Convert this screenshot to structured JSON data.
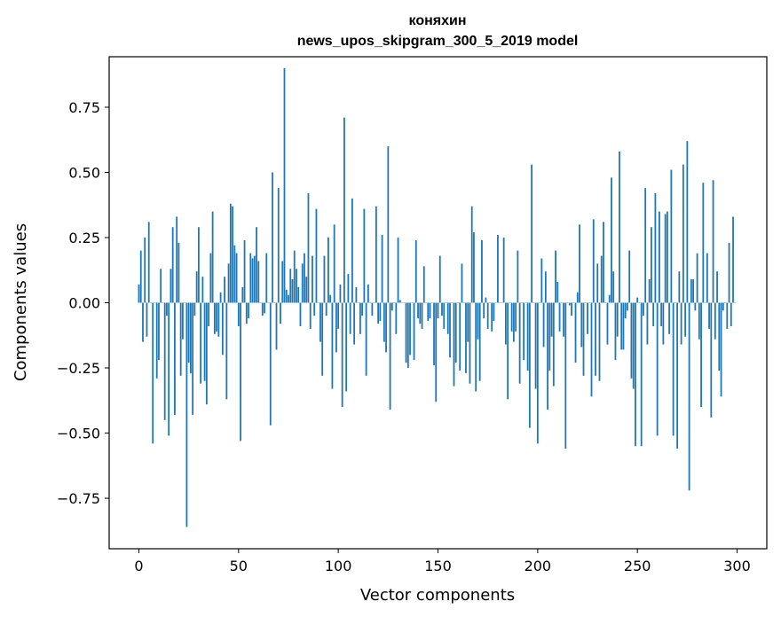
{
  "chart_data": {
    "type": "bar",
    "title": "коняхин",
    "subtitle": "news_upos_skipgram_300_5_2019 model",
    "xlabel": "Vector components",
    "ylabel": "Components values",
    "xlim": [
      -14.9,
      314.9
    ],
    "ylim": [
      -0.9436,
      0.9436
    ],
    "xticks": [
      0,
      50,
      100,
      150,
      200,
      250,
      300
    ],
    "xtick_labels": [
      "0",
      "50",
      "100",
      "150",
      "200",
      "250",
      "300"
    ],
    "yticks": [
      -0.75,
      -0.5,
      -0.25,
      0.0,
      0.25,
      0.5,
      0.75
    ],
    "ytick_labels": [
      "−0.75",
      "−0.50",
      "−0.25",
      "0.00",
      "0.25",
      "0.50",
      "0.75"
    ],
    "grid": false,
    "bar_color": "#1f77b4",
    "x": [
      0,
      1,
      2,
      3,
      4,
      5,
      6,
      7,
      8,
      9,
      10,
      11,
      12,
      13,
      14,
      15,
      16,
      17,
      18,
      19,
      20,
      21,
      22,
      23,
      24,
      25,
      26,
      27,
      28,
      29,
      30,
      31,
      32,
      33,
      34,
      35,
      36,
      37,
      38,
      39,
      40,
      41,
      42,
      43,
      44,
      45,
      46,
      47,
      48,
      49,
      50,
      51,
      52,
      53,
      54,
      55,
      56,
      57,
      58,
      59,
      60,
      61,
      62,
      63,
      64,
      65,
      66,
      67,
      68,
      69,
      70,
      71,
      72,
      73,
      74,
      75,
      76,
      77,
      78,
      79,
      80,
      81,
      82,
      83,
      84,
      85,
      86,
      87,
      88,
      89,
      90,
      91,
      92,
      93,
      94,
      95,
      96,
      97,
      98,
      99,
      100,
      101,
      102,
      103,
      104,
      105,
      106,
      107,
      108,
      109,
      110,
      111,
      112,
      113,
      114,
      115,
      116,
      117,
      118,
      119,
      120,
      121,
      122,
      123,
      124,
      125,
      126,
      127,
      128,
      129,
      130,
      131,
      132,
      133,
      134,
      135,
      136,
      137,
      138,
      139,
      140,
      141,
      142,
      143,
      144,
      145,
      146,
      147,
      148,
      149,
      150,
      151,
      152,
      153,
      154,
      155,
      156,
      157,
      158,
      159,
      160,
      161,
      162,
      163,
      164,
      165,
      166,
      167,
      168,
      169,
      170,
      171,
      172,
      173,
      174,
      175,
      176,
      177,
      178,
      179,
      180,
      181,
      182,
      183,
      184,
      185,
      186,
      187,
      188,
      189,
      190,
      191,
      192,
      193,
      194,
      195,
      196,
      197,
      198,
      199,
      200,
      201,
      202,
      203,
      204,
      205,
      206,
      207,
      208,
      209,
      210,
      211,
      212,
      213,
      214,
      215,
      216,
      217,
      218,
      219,
      220,
      221,
      222,
      223,
      224,
      225,
      226,
      227,
      228,
      229,
      230,
      231,
      232,
      233,
      234,
      235,
      236,
      237,
      238,
      239,
      240,
      241,
      242,
      243,
      244,
      245,
      246,
      247,
      248,
      249,
      250,
      251,
      252,
      253,
      254,
      255,
      256,
      257,
      258,
      259,
      260,
      261,
      262,
      263,
      264,
      265,
      266,
      267,
      268,
      269,
      270,
      271,
      272,
      273,
      274,
      275,
      276,
      277,
      278,
      279,
      280,
      281,
      282,
      283,
      284,
      285,
      286,
      287,
      288,
      289,
      290,
      291,
      292,
      293,
      294,
      295,
      296,
      297,
      298,
      299
    ],
    "values": [
      0.07,
      0.2,
      -0.15,
      0.25,
      -0.13,
      0.31,
      0.0,
      -0.54,
      0.0,
      -0.29,
      -0.22,
      0.13,
      0.0,
      -0.45,
      -0.05,
      -0.51,
      0.13,
      0.29,
      -0.43,
      0.33,
      0.23,
      -0.28,
      -0.14,
      0.0,
      -0.86,
      -0.23,
      -0.27,
      -0.43,
      -0.05,
      0.12,
      0.29,
      -0.31,
      0.1,
      -0.3,
      -0.39,
      -0.09,
      0.19,
      0.35,
      -0.12,
      -0.11,
      -0.13,
      0.04,
      -0.2,
      0.1,
      -0.37,
      0.15,
      0.38,
      0.37,
      0.22,
      0.19,
      -0.09,
      -0.53,
      0.06,
      0.24,
      -0.08,
      -0.06,
      0.19,
      0.17,
      0.18,
      0.29,
      0.16,
      0.0,
      -0.05,
      -0.04,
      0.19,
      0.0,
      -0.47,
      0.5,
      0.0,
      -0.18,
      0.44,
      -0.08,
      0.16,
      0.9,
      0.05,
      0.03,
      0.13,
      0.09,
      0.2,
      0.13,
      0.06,
      -0.09,
      0.15,
      0.19,
      0.1,
      0.42,
      -0.1,
      0.18,
      -0.05,
      0.36,
      0.0,
      -0.15,
      -0.28,
      0.18,
      -0.05,
      0.25,
      0.03,
      -0.33,
      0.3,
      -0.19,
      -0.1,
      0.07,
      -0.4,
      0.71,
      -0.34,
      0.11,
      -0.12,
      0.4,
      -0.16,
      0.06,
      0.0,
      -0.12,
      -0.05,
      0.36,
      -0.28,
      0.07,
      0.0,
      -0.05,
      0.0,
      0.37,
      -0.08,
      -0.07,
      0.26,
      -0.15,
      -0.19,
      0.6,
      -0.41,
      -0.03,
      0.0,
      -0.12,
      0.25,
      0.01,
      0.0,
      0.0,
      -0.23,
      -0.25,
      -0.2,
      0.0,
      -0.22,
      0.24,
      -0.06,
      -0.08,
      -0.1,
      0.14,
      0.0,
      -0.07,
      -0.06,
      0.0,
      -0.24,
      -0.38,
      -0.06,
      0.18,
      -0.05,
      -0.1,
      0.0,
      -0.12,
      -0.21,
      0.0,
      -0.32,
      -0.23,
      0.0,
      -0.26,
      0.15,
      0.0,
      -0.27,
      -0.15,
      -0.31,
      0.37,
      0.27,
      -0.34,
      -0.14,
      -0.3,
      0.24,
      -0.06,
      0.02,
      -0.1,
      0.0,
      -0.11,
      -0.07,
      0.0,
      0.26,
      0.0,
      0.0,
      0.25,
      -0.16,
      -0.37,
      0.0,
      -0.11,
      -0.15,
      -0.11,
      0.2,
      -0.31,
      0.0,
      -0.22,
      0.0,
      -0.26,
      -0.48,
      0.53,
      0.0,
      -0.33,
      -0.54,
      0.0,
      0.17,
      -0.17,
      0.12,
      -0.41,
      -0.26,
      -0.13,
      -0.32,
      0.2,
      0.08,
      -0.11,
      0.0,
      -0.13,
      -0.56,
      0.0,
      -0.01,
      -0.05,
      0.0,
      -0.23,
      0.04,
      0.3,
      -0.17,
      -0.28,
      0.0,
      -0.12,
      0.0,
      -0.36,
      0.32,
      -0.28,
      0.15,
      -0.3,
      0.18,
      0.31,
      0.0,
      -0.16,
      0.03,
      0.48,
      0.12,
      -0.22,
      -0.13,
      0.58,
      -0.18,
      -0.18,
      -0.06,
      -0.03,
      0.2,
      -0.29,
      -0.33,
      -0.55,
      0.02,
      0.0,
      -0.55,
      -0.05,
      0.44,
      -0.16,
      0.09,
      0.29,
      -0.09,
      0.42,
      -0.51,
      0.35,
      -0.09,
      -0.16,
      0.34,
      0.35,
      -0.12,
      0.51,
      -0.51,
      0.0,
      -0.56,
      0.12,
      -0.16,
      0.53,
      -0.13,
      0.62,
      -0.72,
      0.09,
      0.09,
      -0.03,
      0.19,
      -0.14,
      -0.4,
      0.46,
      0.0,
      0.19,
      -0.1,
      -0.44,
      0.47,
      -0.14,
      0.12,
      -0.26,
      -0.36,
      -0.03,
      0.0,
      -0.1,
      0.23,
      -0.09,
      0.33,
      0.0
    ]
  }
}
